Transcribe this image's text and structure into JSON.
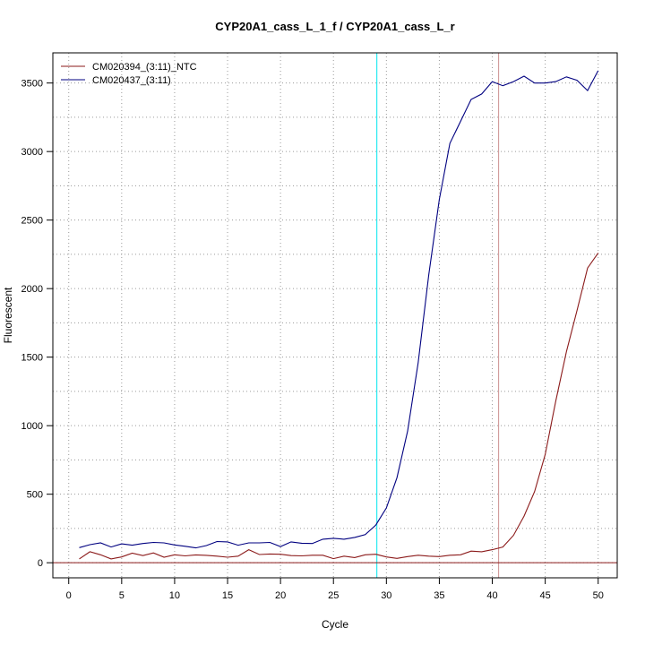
{
  "chart_data": {
    "type": "line",
    "title": "CYP20A1_cass_L_1_f / CYP20A1_cass_L_r",
    "xlabel": "Cycle",
    "ylabel": "Fluorescent",
    "xlim": [
      -1.5,
      51.8
    ],
    "ylim": [
      -110,
      3720
    ],
    "xticks": [
      0,
      5,
      10,
      15,
      20,
      25,
      30,
      35,
      40,
      45,
      50
    ],
    "yticks": [
      0,
      500,
      1000,
      1500,
      2000,
      2500,
      3000,
      3500
    ],
    "grid": true,
    "legend_position": "top-left",
    "x": [
      1,
      2,
      3,
      4,
      5,
      6,
      7,
      8,
      9,
      10,
      11,
      12,
      13,
      14,
      15,
      16,
      17,
      18,
      19,
      20,
      21,
      22,
      23,
      24,
      25,
      26,
      27,
      28,
      29,
      30,
      31,
      32,
      33,
      34,
      35,
      36,
      37,
      38,
      39,
      40,
      41,
      42,
      43,
      44,
      45,
      46,
      47,
      48,
      49,
      50
    ],
    "series": [
      {
        "name": "CM020394_(3:11)_NTC",
        "color": "#8b1a1a",
        "values": [
          28,
          80,
          58,
          28,
          42,
          70,
          52,
          72,
          40,
          58,
          50,
          57,
          54,
          48,
          40,
          48,
          95,
          60,
          64,
          62,
          52,
          50,
          55,
          55,
          30,
          48,
          38,
          58,
          62,
          42,
          32,
          45,
          55,
          48,
          45,
          55,
          58,
          85,
          80,
          95,
          115,
          200,
          340,
          520,
          790,
          1180,
          1540,
          1840,
          2150,
          2260
        ]
      },
      {
        "name": "CM020437_(3:11)",
        "color": "#000080",
        "values": [
          110,
          132,
          145,
          115,
          138,
          128,
          140,
          148,
          145,
          130,
          120,
          108,
          125,
          155,
          152,
          128,
          145,
          145,
          148,
          118,
          152,
          142,
          140,
          172,
          178,
          172,
          185,
          205,
          275,
          400,
          620,
          960,
          1460,
          2100,
          2650,
          3060,
          3220,
          3380,
          3420,
          3510,
          3480,
          3510,
          3550,
          3500,
          3500,
          3510,
          3545,
          3520,
          3445,
          3590
        ]
      }
    ],
    "vlines": [
      {
        "x": 29.1,
        "color": "#00e5ee"
      },
      {
        "x": 40.6,
        "color": "#cd8f8f"
      }
    ],
    "hlines": [
      {
        "y": 0,
        "color": "#8b1a1a"
      }
    ]
  }
}
